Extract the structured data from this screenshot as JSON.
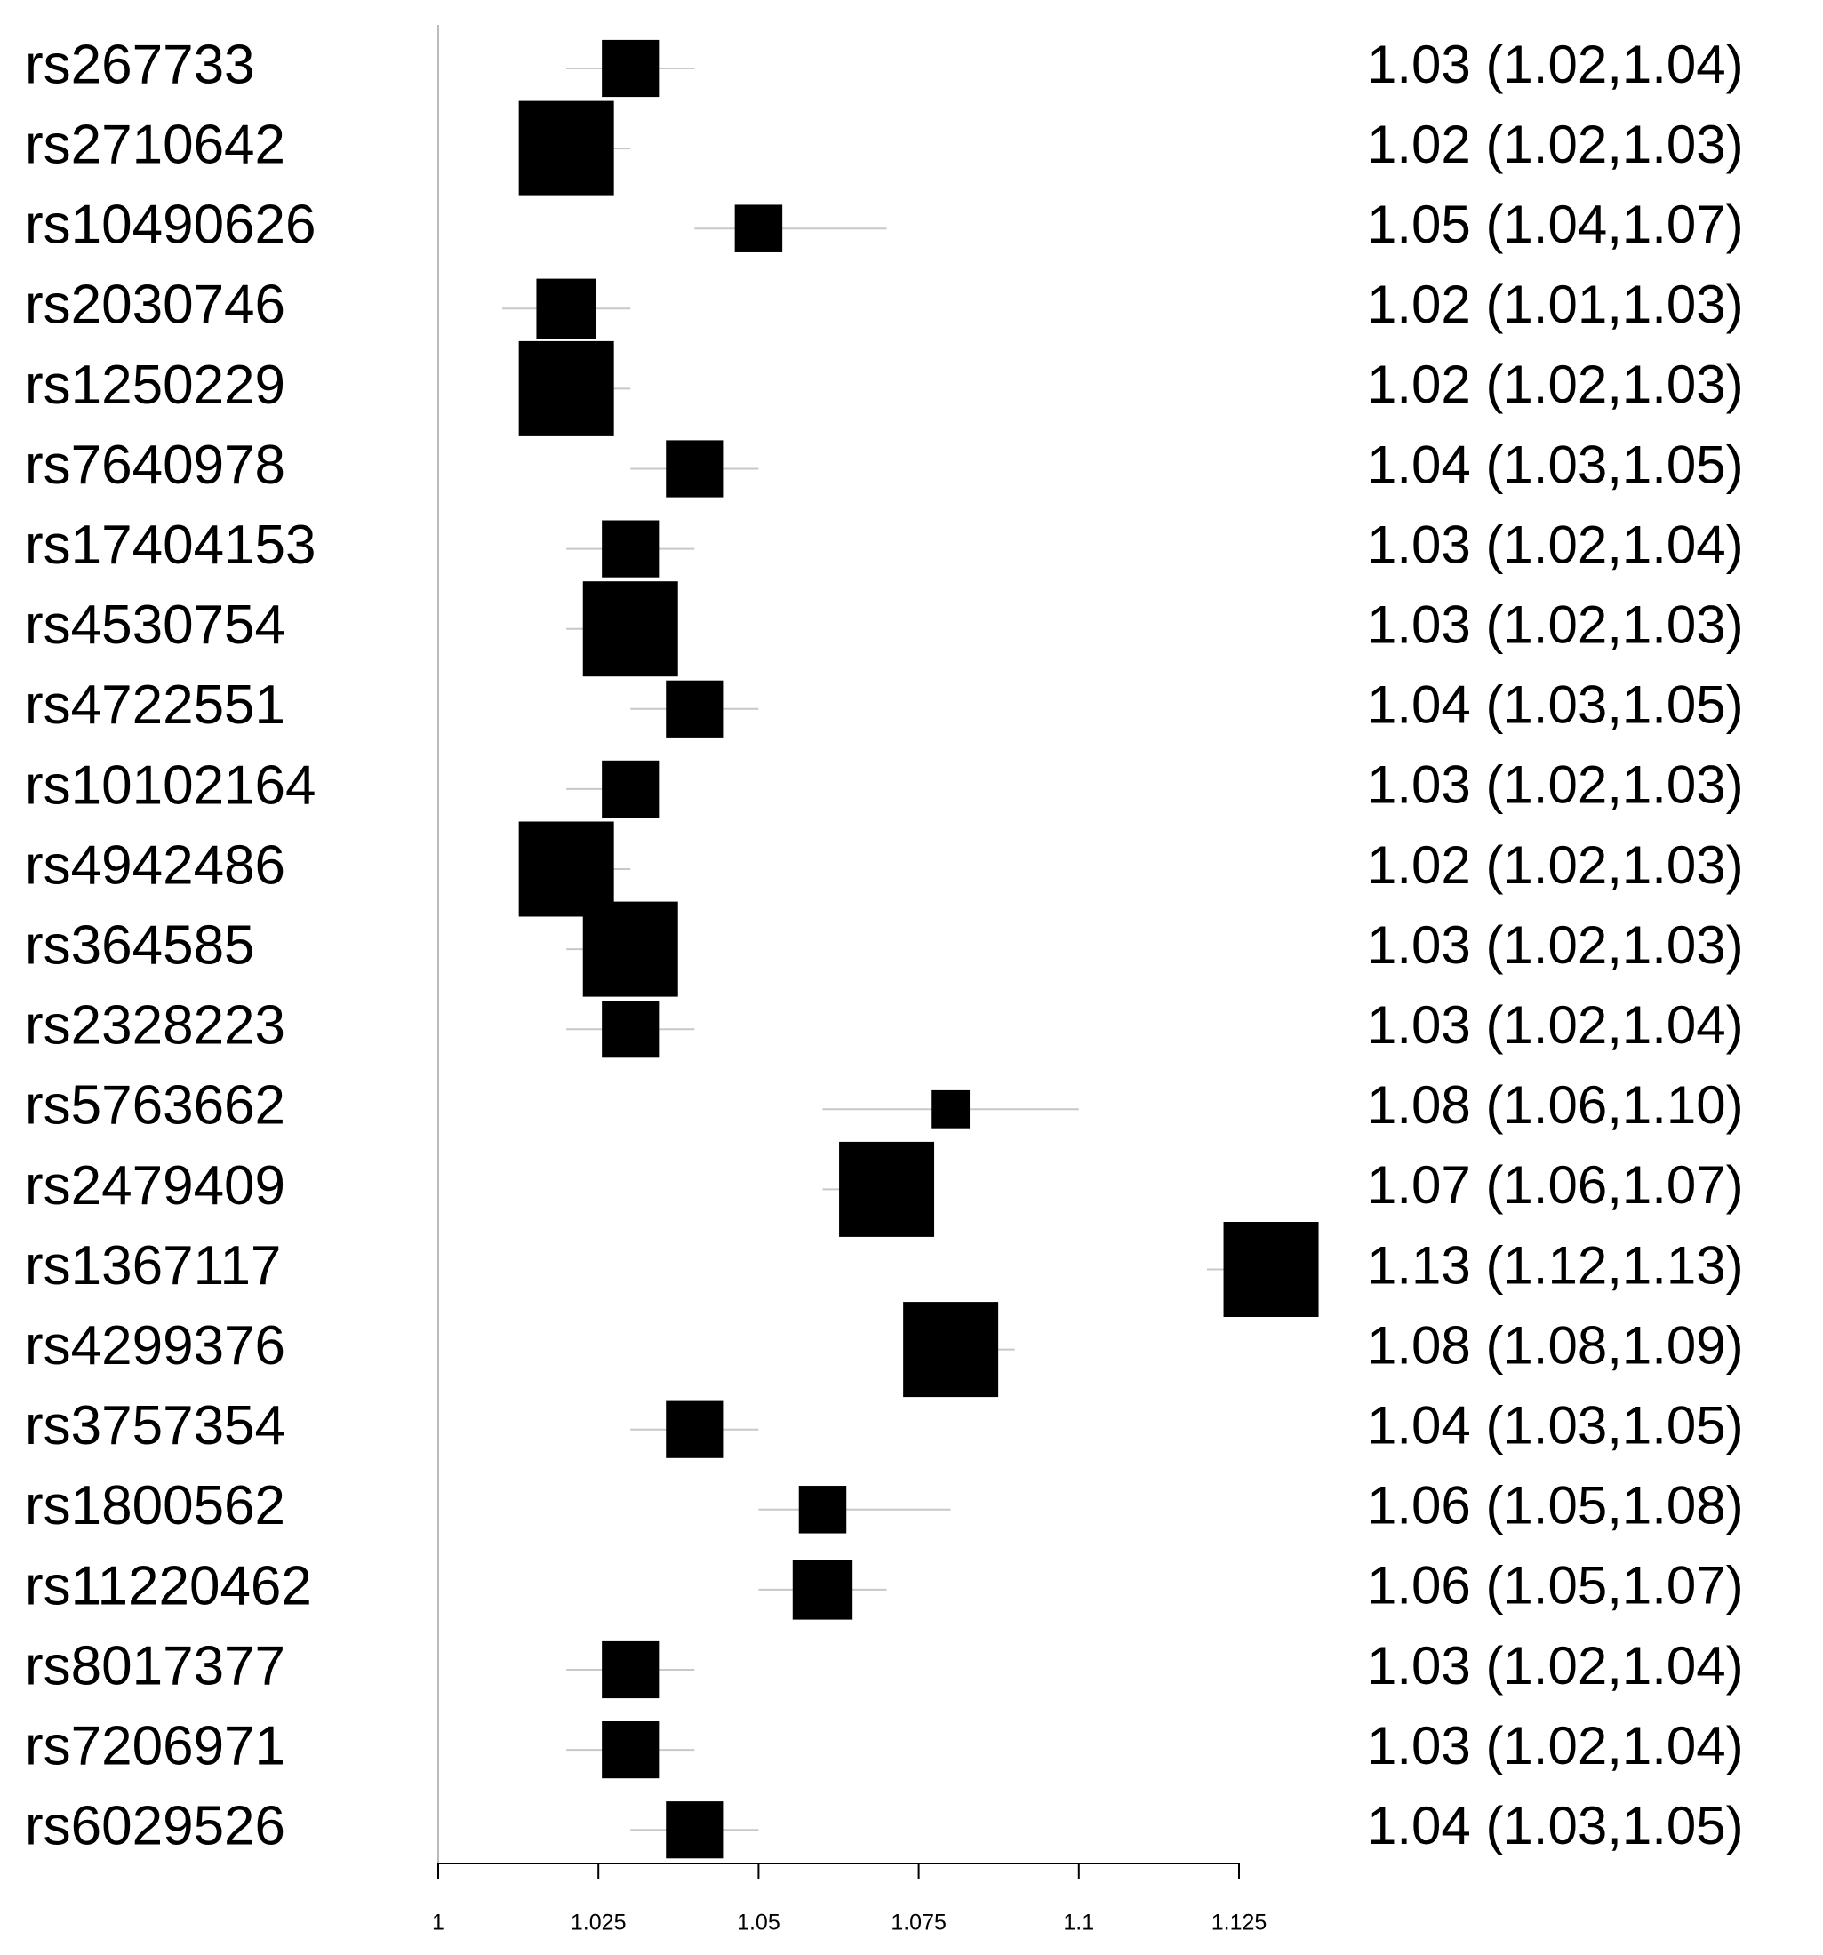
{
  "chart_data": {
    "type": "forest",
    "categories": [
      "rs267733",
      "rs2710642",
      "rs10490626",
      "rs2030746",
      "rs1250229",
      "rs7640978",
      "rs17404153",
      "rs4530754",
      "rs4722551",
      "rs10102164",
      "rs4942486",
      "rs364585",
      "rs2328223",
      "rs5763662",
      "rs2479409",
      "rs1367117",
      "rs4299376",
      "rs3757354",
      "rs1800562",
      "rs11220462",
      "rs8017377",
      "rs7206971",
      "rs6029526"
    ],
    "values": [
      1.03,
      1.02,
      1.05,
      1.02,
      1.02,
      1.04,
      1.03,
      1.03,
      1.04,
      1.03,
      1.02,
      1.03,
      1.03,
      1.08,
      1.07,
      1.13,
      1.08,
      1.04,
      1.06,
      1.06,
      1.03,
      1.03,
      1.04
    ],
    "lower": [
      1.02,
      1.02,
      1.04,
      1.01,
      1.02,
      1.03,
      1.02,
      1.02,
      1.03,
      1.02,
      1.02,
      1.02,
      1.02,
      1.06,
      1.06,
      1.12,
      1.08,
      1.03,
      1.05,
      1.05,
      1.02,
      1.02,
      1.03
    ],
    "upper": [
      1.04,
      1.03,
      1.07,
      1.03,
      1.03,
      1.05,
      1.04,
      1.03,
      1.05,
      1.03,
      1.03,
      1.03,
      1.04,
      1.1,
      1.07,
      1.13,
      1.09,
      1.05,
      1.08,
      1.07,
      1.04,
      1.04,
      1.05
    ],
    "value_labels": [
      "1.03 (1.02,1.04)",
      "1.02 (1.02,1.03)",
      "1.05 (1.04,1.07)",
      "1.02 (1.01,1.03)",
      "1.02 (1.02,1.03)",
      "1.04 (1.03,1.05)",
      "1.03 (1.02,1.04)",
      "1.03 (1.02,1.03)",
      "1.04 (1.03,1.05)",
      "1.03 (1.02,1.03)",
      "1.02 (1.02,1.03)",
      "1.03 (1.02,1.03)",
      "1.03 (1.02,1.04)",
      "1.08 (1.06,1.10)",
      "1.07 (1.06,1.07)",
      "1.13 (1.12,1.13)",
      "1.08 (1.08,1.09)",
      "1.04 (1.03,1.05)",
      "1.06 (1.05,1.08)",
      "1.06 (1.05,1.07)",
      "1.03 (1.02,1.04)",
      "1.03 (1.02,1.04)",
      "1.04 (1.03,1.05)"
    ],
    "weights": [
      0.6,
      1.0,
      0.5,
      0.63,
      1.0,
      0.6,
      0.6,
      1.0,
      0.6,
      0.6,
      1.0,
      1.0,
      0.6,
      0.4,
      1.0,
      1.0,
      1.0,
      0.6,
      0.5,
      0.63,
      0.6,
      0.6,
      0.6
    ],
    "color": "#000000",
    "whisker_color": "#c8c8c8",
    "xlim": [
      1,
      1.125
    ],
    "xticks": [
      1,
      1.025,
      1.05,
      1.075,
      1.1,
      1.125
    ]
  }
}
